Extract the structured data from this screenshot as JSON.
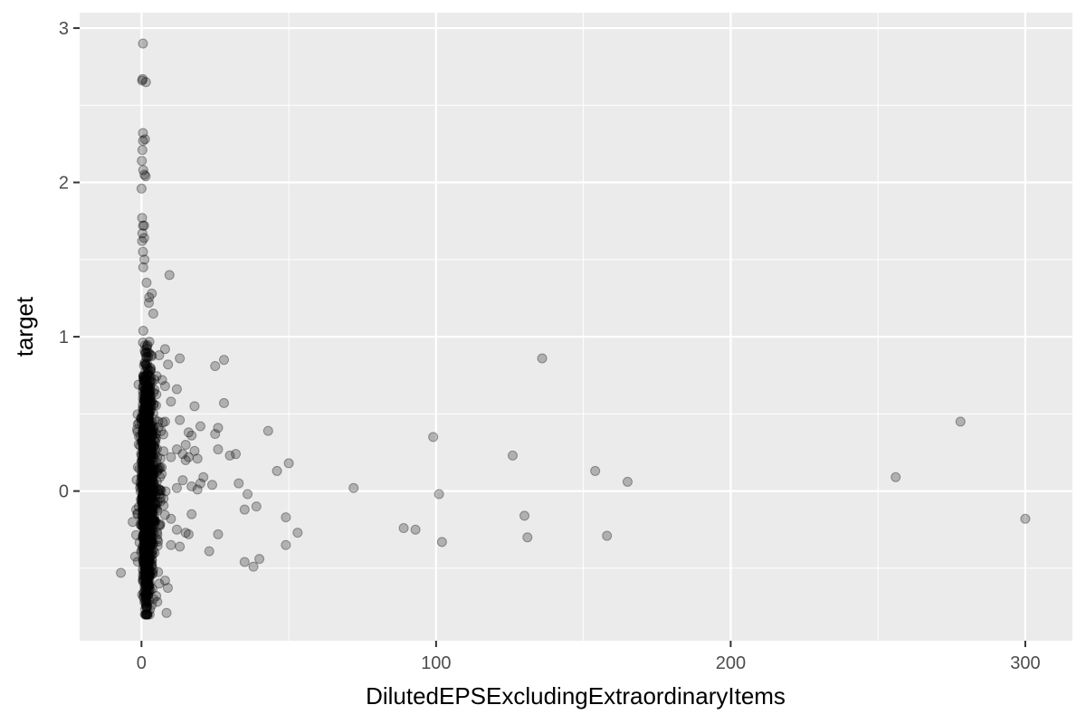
{
  "chart_data": {
    "type": "scatter",
    "title": "",
    "xlabel": "DilutedEPSExcludingExtraordinaryItems",
    "ylabel": "target",
    "xlim": [
      -21,
      316
    ],
    "ylim": [
      -0.97,
      3.1
    ],
    "x_ticks": [
      0,
      100,
      200,
      300
    ],
    "x_tick_labels": [
      "0",
      "100",
      "200",
      "300"
    ],
    "y_ticks": [
      0,
      1,
      2,
      3
    ],
    "y_tick_labels": [
      "0",
      "1",
      "2",
      "3"
    ],
    "x_minor_ticks": [
      -50,
      50,
      150,
      250
    ],
    "y_minor_ticks": [
      -0.5,
      0.5,
      1.5,
      2.5
    ],
    "grid": true,
    "panel_color": "#ebebeb",
    "grid_color": "#ffffff",
    "point_color": "#000000",
    "point_opacity": 0.25,
    "cluster": {
      "x_min": -3,
      "x_max": 10,
      "y_min": -0.8,
      "y_max": 1.8,
      "x_center": 1.2,
      "y_center": 0.06,
      "x_spread": 1.6,
      "y_spread": 0.32,
      "count": 2500
    },
    "points": [
      {
        "x": 0.5,
        "y": 2.9
      },
      {
        "x": 0.4,
        "y": 2.67
      },
      {
        "x": 0.2,
        "y": 2.66
      },
      {
        "x": 1.5,
        "y": 2.65
      },
      {
        "x": 0.5,
        "y": 2.32
      },
      {
        "x": 0.5,
        "y": 2.27
      },
      {
        "x": 1.2,
        "y": 2.28
      },
      {
        "x": 0.3,
        "y": 2.21
      },
      {
        "x": 0.1,
        "y": 2.14
      },
      {
        "x": 0.6,
        "y": 2.08
      },
      {
        "x": 1.0,
        "y": 2.05
      },
      {
        "x": 1.4,
        "y": 2.04
      },
      {
        "x": 0.0,
        "y": 1.96
      },
      {
        "x": 0.2,
        "y": 1.77
      },
      {
        "x": 0.5,
        "y": 1.72
      },
      {
        "x": 0.9,
        "y": 1.72
      },
      {
        "x": 0.3,
        "y": 1.67
      },
      {
        "x": 0.9,
        "y": 1.64
      },
      {
        "x": 0.2,
        "y": 1.62
      },
      {
        "x": 0.5,
        "y": 1.55
      },
      {
        "x": 1.0,
        "y": 1.5
      },
      {
        "x": 0.6,
        "y": 1.45
      },
      {
        "x": 9.5,
        "y": 1.4
      },
      {
        "x": 1.7,
        "y": 1.35
      },
      {
        "x": 3.5,
        "y": 1.28
      },
      {
        "x": 2.5,
        "y": 1.22
      },
      {
        "x": 4.0,
        "y": 1.15
      },
      {
        "x": 136,
        "y": 0.86
      },
      {
        "x": 28,
        "y": 0.85
      },
      {
        "x": 25,
        "y": 0.81
      },
      {
        "x": 13,
        "y": 0.86
      },
      {
        "x": 9,
        "y": 0.82
      },
      {
        "x": 8,
        "y": 0.92
      },
      {
        "x": 6,
        "y": 0.88
      },
      {
        "x": 7,
        "y": 0.72
      },
      {
        "x": 12,
        "y": 0.66
      },
      {
        "x": 8,
        "y": 0.68
      },
      {
        "x": 28,
        "y": 0.57
      },
      {
        "x": 18,
        "y": 0.55
      },
      {
        "x": 10,
        "y": 0.58
      },
      {
        "x": 13,
        "y": 0.46
      },
      {
        "x": 8,
        "y": 0.45
      },
      {
        "x": 20,
        "y": 0.42
      },
      {
        "x": 26,
        "y": 0.41
      },
      {
        "x": 16,
        "y": 0.38
      },
      {
        "x": 25,
        "y": 0.37
      },
      {
        "x": 43,
        "y": 0.39
      },
      {
        "x": 17,
        "y": 0.36
      },
      {
        "x": 15,
        "y": 0.3
      },
      {
        "x": 12,
        "y": 0.27
      },
      {
        "x": 18,
        "y": 0.26
      },
      {
        "x": 26,
        "y": 0.27
      },
      {
        "x": 30,
        "y": 0.23
      },
      {
        "x": 32,
        "y": 0.24
      },
      {
        "x": 14,
        "y": 0.24
      },
      {
        "x": 16,
        "y": 0.22
      },
      {
        "x": 19,
        "y": 0.21
      },
      {
        "x": 15,
        "y": 0.2
      },
      {
        "x": 10,
        "y": 0.22
      },
      {
        "x": 50,
        "y": 0.18
      },
      {
        "x": 46,
        "y": 0.13
      },
      {
        "x": 21,
        "y": 0.09
      },
      {
        "x": 14,
        "y": 0.07
      },
      {
        "x": 20,
        "y": 0.05
      },
      {
        "x": 24,
        "y": 0.04
      },
      {
        "x": 33,
        "y": 0.05
      },
      {
        "x": 19,
        "y": 0.01
      },
      {
        "x": 17,
        "y": 0.03
      },
      {
        "x": 12,
        "y": 0.02
      },
      {
        "x": 36,
        "y": -0.02
      },
      {
        "x": 39,
        "y": -0.1
      },
      {
        "x": 35,
        "y": -0.12
      },
      {
        "x": 49,
        "y": -0.17
      },
      {
        "x": 17,
        "y": -0.15
      },
      {
        "x": 10,
        "y": -0.18
      },
      {
        "x": 12,
        "y": -0.25
      },
      {
        "x": 16,
        "y": -0.28
      },
      {
        "x": 15,
        "y": -0.27
      },
      {
        "x": 26,
        "y": -0.28
      },
      {
        "x": 53,
        "y": -0.27
      },
      {
        "x": 49,
        "y": -0.35
      },
      {
        "x": 13,
        "y": -0.36
      },
      {
        "x": 10,
        "y": -0.35
      },
      {
        "x": 23,
        "y": -0.39
      },
      {
        "x": 40,
        "y": -0.44
      },
      {
        "x": 35,
        "y": -0.46
      },
      {
        "x": 38,
        "y": -0.49
      },
      {
        "x": 8,
        "y": -0.58
      },
      {
        "x": 6,
        "y": -0.6
      },
      {
        "x": 5,
        "y": -0.68
      },
      {
        "x": 4,
        "y": -0.7
      },
      {
        "x": 1,
        "y": -0.72
      },
      {
        "x": 2,
        "y": -0.75
      },
      {
        "x": 8.5,
        "y": -0.79
      },
      {
        "x": -7,
        "y": -0.53
      },
      {
        "x": -3,
        "y": -0.2
      },
      {
        "x": -1.5,
        "y": 0.4
      },
      {
        "x": -1,
        "y": 0.69
      },
      {
        "x": 72,
        "y": 0.02
      },
      {
        "x": 99,
        "y": 0.35
      },
      {
        "x": 101,
        "y": -0.02
      },
      {
        "x": 89,
        "y": -0.24
      },
      {
        "x": 93,
        "y": -0.25
      },
      {
        "x": 102,
        "y": -0.33
      },
      {
        "x": 126,
        "y": 0.23
      },
      {
        "x": 130,
        "y": -0.16
      },
      {
        "x": 131,
        "y": -0.3
      },
      {
        "x": 154,
        "y": 0.13
      },
      {
        "x": 158,
        "y": -0.29
      },
      {
        "x": 165,
        "y": 0.06
      },
      {
        "x": 256,
        "y": 0.09
      },
      {
        "x": 278,
        "y": 0.45
      },
      {
        "x": 300,
        "y": -0.18
      }
    ]
  }
}
